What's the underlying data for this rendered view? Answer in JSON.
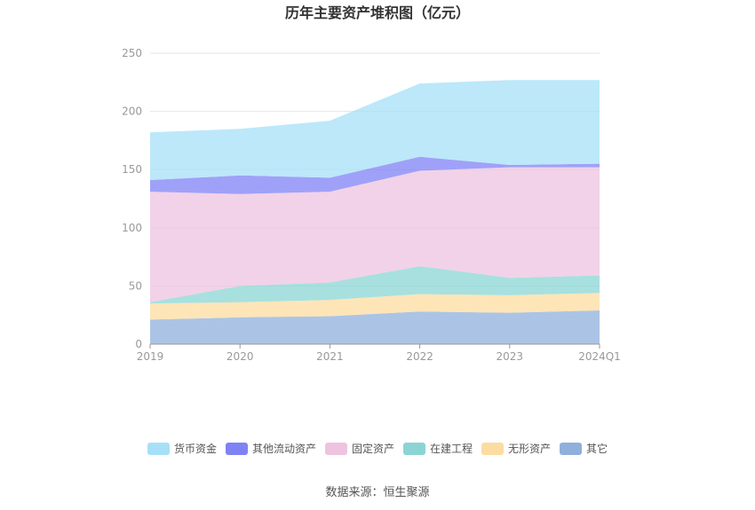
{
  "chart_data": {
    "type": "area",
    "stacked": true,
    "title": "历年主要资产堆积图（亿元）",
    "categories": [
      "2019",
      "2020",
      "2021",
      "2022",
      "2023",
      "2024Q1"
    ],
    "ylim": [
      0,
      250
    ],
    "yticks": [
      0,
      50,
      100,
      150,
      200,
      250
    ],
    "grid": true,
    "legend_position": "bottom",
    "series": [
      {
        "name": "其它",
        "color": "#8fb0dc",
        "values": [
          21,
          23,
          24,
          28,
          27,
          29
        ]
      },
      {
        "name": "无形资产",
        "color": "#fcdca0",
        "values": [
          14,
          13,
          14,
          15,
          15,
          15
        ]
      },
      {
        "name": "在建工程",
        "color": "#8ad5d4",
        "values": [
          1,
          14,
          15,
          24,
          15,
          15
        ]
      },
      {
        "name": "固定资产",
        "color": "#eec3e0",
        "values": [
          95,
          79,
          78,
          82,
          95,
          93
        ]
      },
      {
        "name": "其他流动资产",
        "color": "#7f82f5",
        "values": [
          10,
          16,
          12,
          12,
          2,
          3
        ]
      },
      {
        "name": "货币资金",
        "color": "#a6e0f8",
        "values": [
          41,
          40,
          49,
          63,
          73,
          72
        ]
      }
    ],
    "legend_order": [
      "货币资金",
      "其他流动资产",
      "固定资产",
      "在建工程",
      "无形资产",
      "其它"
    ]
  },
  "footer": {
    "source": "数据来源：恒生聚源"
  }
}
